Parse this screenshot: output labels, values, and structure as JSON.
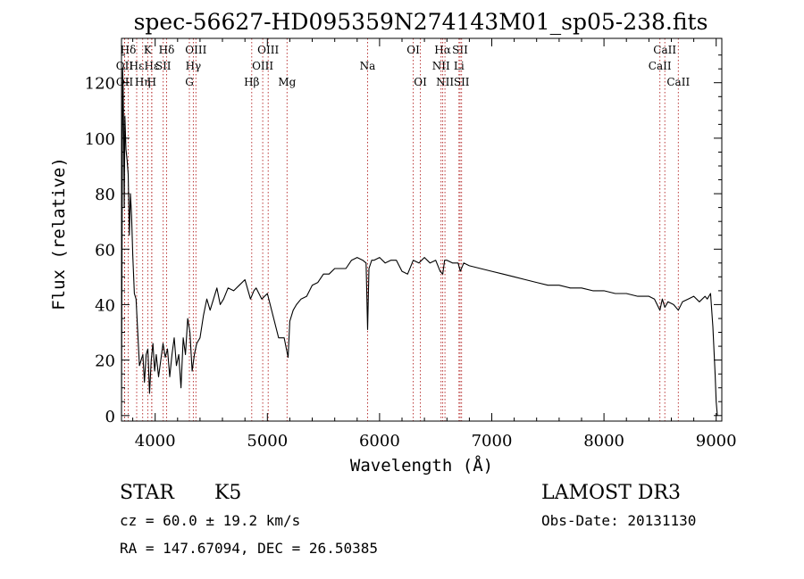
{
  "chart_data": {
    "type": "line",
    "title": "spec-56627-HD095359N274143M01_sp05-238.fits",
    "xlabel": "Wavelength (Å)",
    "ylabel": "Flux (relative)",
    "xlim": [
      3700,
      9050
    ],
    "ylim": [
      -2,
      136
    ],
    "x_ticks": [
      4000,
      5000,
      6000,
      7000,
      8000,
      9000
    ],
    "y_ticks": [
      0,
      20,
      40,
      60,
      80,
      100,
      120
    ],
    "grid": false,
    "series": [
      {
        "name": "flux",
        "x": [
          3700,
          3705,
          3710,
          3715,
          3720,
          3725,
          3730,
          3740,
          3750,
          3760,
          3770,
          3780,
          3790,
          3800,
          3815,
          3830,
          3845,
          3860,
          3875,
          3890,
          3905,
          3920,
          3935,
          3950,
          3965,
          3980,
          3995,
          4010,
          4030,
          4050,
          4070,
          4090,
          4110,
          4130,
          4150,
          4170,
          4190,
          4210,
          4230,
          4250,
          4270,
          4290,
          4310,
          4330,
          4350,
          4370,
          4400,
          4430,
          4460,
          4490,
          4520,
          4550,
          4580,
          4610,
          4650,
          4700,
          4750,
          4800,
          4850,
          4880,
          4900,
          4950,
          5000,
          5050,
          5100,
          5150,
          5170,
          5185,
          5200,
          5230,
          5260,
          5300,
          5350,
          5400,
          5450,
          5500,
          5550,
          5600,
          5650,
          5700,
          5750,
          5800,
          5850,
          5880,
          5893,
          5905,
          5930,
          5950,
          6000,
          6050,
          6100,
          6150,
          6200,
          6250,
          6300,
          6350,
          6400,
          6450,
          6500,
          6540,
          6563,
          6580,
          6600,
          6650,
          6700,
          6720,
          6750,
          6800,
          6900,
          7000,
          7100,
          7200,
          7300,
          7400,
          7500,
          7600,
          7700,
          7800,
          7900,
          8000,
          8100,
          8200,
          8300,
          8400,
          8450,
          8498,
          8520,
          8542,
          8570,
          8620,
          8662,
          8700,
          8750,
          8800,
          8850,
          8900,
          8920,
          8950,
          8970,
          8990,
          9000,
          9010
        ],
        "y": [
          0,
          60,
          125,
          118,
          100,
          75,
          108,
          96,
          92,
          87,
          65,
          80,
          72,
          58,
          44,
          42,
          30,
          18,
          20,
          22,
          12,
          22,
          24,
          8,
          20,
          26,
          16,
          22,
          14,
          20,
          26,
          21,
          24,
          14,
          22,
          28,
          18,
          22,
          10,
          28,
          22,
          35,
          30,
          16,
          22,
          26,
          28,
          36,
          42,
          38,
          42,
          46,
          40,
          42,
          46,
          45,
          47,
          49,
          42,
          45,
          46,
          42,
          44,
          36,
          28,
          28,
          24,
          21,
          34,
          38,
          40,
          42,
          43,
          47,
          48,
          51,
          51,
          53,
          53,
          53,
          56,
          57,
          56,
          55,
          31,
          53,
          56,
          56,
          57,
          55,
          56,
          56,
          52,
          51,
          56,
          55,
          57,
          55,
          56,
          52,
          51,
          56,
          56,
          55,
          55,
          52,
          55,
          54,
          53,
          52,
          51,
          50,
          49,
          48,
          47,
          47,
          46,
          46,
          45,
          45,
          44,
          44,
          43,
          43,
          42,
          38,
          42,
          39,
          41,
          40,
          38,
          41,
          42,
          43,
          41,
          43,
          42,
          44,
          32,
          15,
          5,
          0
        ]
      }
    ],
    "line_markers": [
      {
        "label": "Hδ",
        "x": 3760,
        "row": 0
      },
      {
        "label": "OII",
        "x": 3727,
        "row": 1
      },
      {
        "label": "OII",
        "x": 3729,
        "row": 2
      },
      {
        "label": "Hε",
        "x": 3835,
        "row": 1
      },
      {
        "label": "Hη",
        "x": 3889,
        "row": 2
      },
      {
        "label": "K",
        "x": 3934,
        "row": 0
      },
      {
        "label": "Hε",
        "x": 3970,
        "row": 1
      },
      {
        "label": "H",
        "x": 3969,
        "row": 2
      },
      {
        "label": "SII",
        "x": 4072,
        "row": 1
      },
      {
        "label": "Hδ",
        "x": 4102,
        "row": 0
      },
      {
        "label": "OIII",
        "x": 4363,
        "row": 0
      },
      {
        "label": "Hγ",
        "x": 4340,
        "row": 1
      },
      {
        "label": "G",
        "x": 4305,
        "row": 2
      },
      {
        "label": "Hβ",
        "x": 4861,
        "row": 2
      },
      {
        "label": "OIII",
        "x": 5007,
        "row": 0
      },
      {
        "label": "OIII",
        "x": 4959,
        "row": 1
      },
      {
        "label": "Mg",
        "x": 5175,
        "row": 2
      },
      {
        "label": "Na",
        "x": 5893,
        "row": 1
      },
      {
        "label": "OI",
        "x": 6300,
        "row": 0
      },
      {
        "label": "OI",
        "x": 6364,
        "row": 2
      },
      {
        "label": "Hα",
        "x": 6563,
        "row": 0
      },
      {
        "label": "NII",
        "x": 6548,
        "row": 1
      },
      {
        "label": "NII",
        "x": 6583,
        "row": 2
      },
      {
        "label": "SII",
        "x": 6717,
        "row": 0
      },
      {
        "label": "Li",
        "x": 6708,
        "row": 1
      },
      {
        "label": "SII",
        "x": 6731,
        "row": 2
      },
      {
        "label": "CaII",
        "x": 8542,
        "row": 0
      },
      {
        "label": "CaII",
        "x": 8498,
        "row": 1
      },
      {
        "label": "CaII",
        "x": 8662,
        "row": 2
      }
    ]
  },
  "info": {
    "object_class": "STAR",
    "subclass": "K5",
    "survey": "LAMOST DR3",
    "redshift": "cz = 60.0 ± 19.2 km/s",
    "obs_date": "Obs-Date: 20131130",
    "coords": "RA = 147.67094, DEC =  26.50385"
  }
}
